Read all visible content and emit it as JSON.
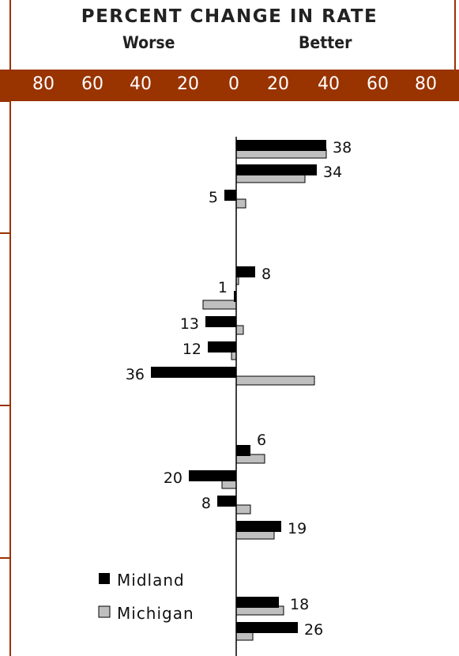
{
  "header": {
    "title": "PERCENT CHANGE IN RATE",
    "worse_label": "Worse",
    "better_label": "Better"
  },
  "colors": {
    "band": "#993300",
    "midland": "#000000",
    "michigan": "#bfbfbf",
    "frame": "#993300"
  },
  "chart_data": {
    "type": "bar",
    "orientation": "horizontal",
    "axis_ticks": [
      "80",
      "60",
      "40",
      "20",
      "0",
      "20",
      "40",
      "60",
      "80"
    ],
    "xlim": [
      -80,
      80
    ],
    "legend_position": "lower-left",
    "series": [
      {
        "name": "Midland",
        "values": [
          38,
          34,
          -5,
          8,
          -1,
          -13,
          -12,
          -36,
          6,
          -20,
          -8,
          19,
          18,
          26
        ],
        "labels": [
          "38",
          "34",
          "5",
          "8",
          "1",
          "13",
          "12",
          "36",
          "6",
          "20",
          "8",
          "19",
          "18",
          "26"
        ]
      },
      {
        "name": "Michigan",
        "values": [
          38,
          29,
          4,
          1,
          -14,
          3,
          -2,
          33,
          12,
          -6,
          6,
          16,
          20,
          7
        ]
      }
    ]
  }
}
